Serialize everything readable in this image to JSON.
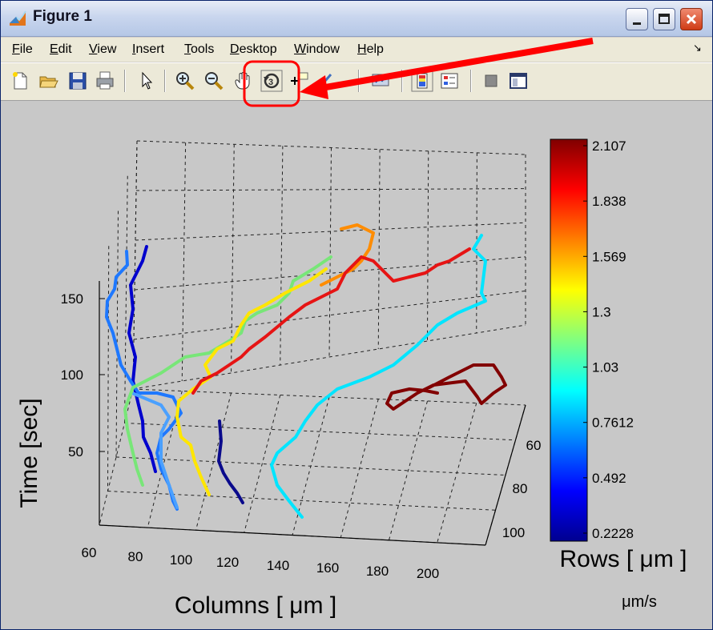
{
  "window": {
    "title": "Figure 1"
  },
  "menu": [
    {
      "label": "File",
      "u": "F",
      "rest": "ile"
    },
    {
      "label": "Edit",
      "u": "E",
      "rest": "dit"
    },
    {
      "label": "View",
      "u": "V",
      "rest": "iew"
    },
    {
      "label": "Insert",
      "u": "I",
      "rest": "nsert"
    },
    {
      "label": "Tools",
      "u": "T",
      "rest": "ools"
    },
    {
      "label": "Desktop",
      "u": "D",
      "rest": "esktop"
    },
    {
      "label": "Window",
      "u": "W",
      "rest": "indow"
    },
    {
      "label": "Help",
      "u": "H",
      "rest": "elp"
    }
  ],
  "toolbar": [
    "new-figure-icon",
    "open-file-icon",
    "save-icon",
    "print-icon",
    "select-arrow-icon",
    "zoom-in-icon",
    "zoom-out-icon",
    "pan-hand-icon",
    "rotate-3d-icon",
    "data-cursor-icon",
    "brush-icon",
    "link-plot-icon",
    "colorbar-icon",
    "legend-icon",
    "hide-plot-tools-icon",
    "show-plot-tools-icon"
  ],
  "annotation": {
    "highlighted_tool": "rotate-3d-icon",
    "color": "#ff0000"
  },
  "axes": {
    "xlabel": "Columns [ μm ]",
    "ylabel": "Rows [ μm ]",
    "zlabel": "Time [sec]",
    "xticks": [
      "60",
      "80",
      "100",
      "120",
      "140",
      "160",
      "180",
      "200"
    ],
    "yticks": [
      "60",
      "80",
      "100"
    ],
    "zticks": [
      "50",
      "100",
      "150"
    ],
    "grid": true
  },
  "colorbar": {
    "colormap": "jet",
    "ticks": [
      "2.107",
      "1.838",
      "1.569",
      "1.3",
      "1.03",
      "0.7612",
      "0.492",
      "0.2228"
    ],
    "unit": "μm/s"
  },
  "chart_data": {
    "type": "line3d",
    "xlabel": "Columns [ μm ]",
    "ylabel": "Rows [ μm ]",
    "zlabel": "Time [sec]",
    "ztick_values": [
      50,
      100,
      150
    ],
    "clim": [
      0.2228,
      2.107
    ],
    "series": [
      {
        "color": "#0a0a8c",
        "speed": 0.25
      },
      {
        "color": "#0000cd",
        "speed": 0.35
      },
      {
        "color": "#1e78ff",
        "speed": 0.6
      },
      {
        "color": "#4aa0ff",
        "speed": 0.65
      },
      {
        "color": "#00e5ff",
        "speed": 0.85
      },
      {
        "color": "#78e678",
        "speed": 1.15
      },
      {
        "color": "#ffe600",
        "speed": 1.4
      },
      {
        "color": "#ff8c00",
        "speed": 1.6
      },
      {
        "color": "#e61414",
        "speed": 1.85
      },
      {
        "color": "#820000",
        "speed": 2.1
      }
    ]
  }
}
